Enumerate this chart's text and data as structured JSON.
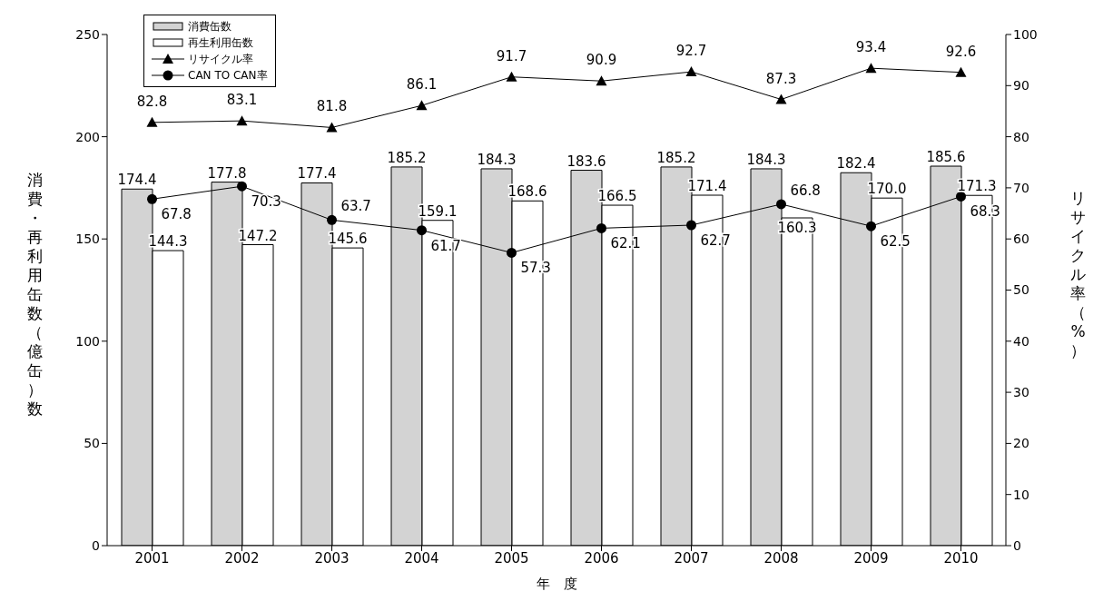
{
  "chart_data": {
    "type": "bar",
    "categories": [
      "2001",
      "2002",
      "2003",
      "2004",
      "2005",
      "2006",
      "2007",
      "2008",
      "2009",
      "2010"
    ],
    "series": [
      {
        "name": "消費缶数",
        "color": "#d3d3d3",
        "values": [
          174.4,
          177.8,
          177.4,
          185.2,
          184.3,
          183.6,
          185.2,
          184.3,
          182.4,
          185.6
        ],
        "value_labels": [
          "174.4",
          "177.8",
          "177.4",
          "185.2",
          "184.3",
          "183.6",
          "185.2",
          "184.3",
          "182.4",
          "185.6"
        ]
      },
      {
        "name": "再生利用缶数",
        "color": "#ffffff",
        "values": [
          144.3,
          147.2,
          145.6,
          159.1,
          168.6,
          166.5,
          171.4,
          160.3,
          170.0,
          171.3
        ],
        "value_labels": [
          "144.3",
          "147.2",
          "145.6",
          "159.1",
          "168.6",
          "166.5",
          "171.4",
          "160.3",
          "170.0",
          "171.3"
        ]
      },
      {
        "name": "リサイクル率",
        "type": "line",
        "axis": "y2",
        "color": "#000000",
        "marker": "triangle",
        "values": [
          82.8,
          83.1,
          81.8,
          86.1,
          91.7,
          90.9,
          92.7,
          87.3,
          93.4,
          92.6
        ],
        "value_labels": [
          "82.8",
          "83.1",
          "81.8",
          "86.1",
          "91.7",
          "90.9",
          "92.7",
          "87.3",
          "93.4",
          "92.6"
        ]
      },
      {
        "name": "CAN TO CAN率",
        "type": "line",
        "axis": "y2",
        "color": "#000000",
        "marker": "circle",
        "values": [
          67.8,
          70.3,
          63.7,
          61.7,
          57.3,
          62.1,
          62.7,
          66.8,
          62.5,
          68.3
        ],
        "value_labels": [
          "67.8",
          "70.3",
          "63.7",
          "61.7",
          "57.3",
          "62.1",
          "62.7",
          "66.8",
          "62.5",
          "68.3"
        ]
      }
    ],
    "xlabel": "年　度",
    "ylabel": "消費・再利用缶数（億缶）数",
    "y2label": "リサイクル率（%）",
    "ylim": [
      0,
      250
    ],
    "yticks": [
      0,
      50,
      100,
      150,
      200,
      250
    ],
    "y2lim": [
      0,
      100
    ],
    "y2ticks": [
      0,
      10,
      20,
      30,
      40,
      50,
      60,
      70,
      80,
      90,
      100
    ],
    "grid": false,
    "legend": "top left",
    "line_style": "solid"
  }
}
